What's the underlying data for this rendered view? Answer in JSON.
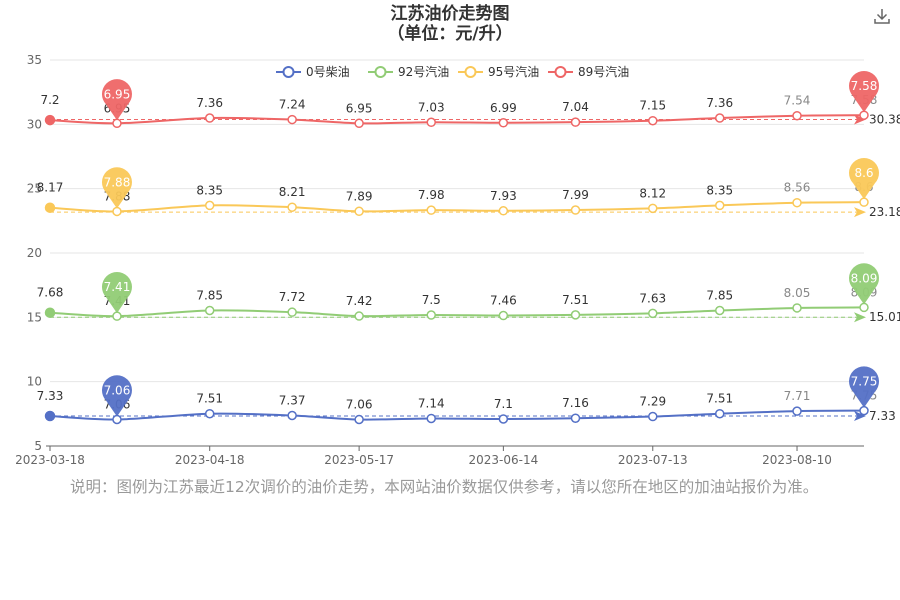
{
  "title_line1": "江苏油价走势图",
  "title_line2": "（单位：元/升）",
  "download_icon": "download-icon",
  "note": "说明：图例为江苏最近12次调价的油价走势，本网站油价数据仅供参考，请以您所在地区的加油站报价为准。",
  "chart_data": {
    "type": "line",
    "x": [
      "2023-03-18",
      "2023-03-31",
      "2023-04-18",
      "2023-05-04",
      "2023-05-17",
      "2023-05-31",
      "2023-06-14",
      "2023-06-28",
      "2023-07-13",
      "2023-07-26",
      "2023-08-10",
      "2023-08-23"
    ],
    "xticks": [
      "2023-03-18",
      "2023-04-18",
      "2023-05-17",
      "2023-06-14",
      "2023-07-13",
      "2023-08-10"
    ],
    "ylim": [
      5,
      35
    ],
    "yticks": [
      5,
      10,
      15,
      20,
      25,
      30,
      35
    ],
    "grid": true,
    "legend_position": "top",
    "series": [
      {
        "name": "0号柴油",
        "color": "#5470c6",
        "offset": 0,
        "values": [
          7.33,
          7.06,
          7.51,
          7.37,
          7.06,
          7.14,
          7.1,
          7.16,
          7.29,
          7.51,
          7.71,
          7.75
        ],
        "average": 7.33,
        "average_label": "7.33",
        "pins": [
          {
            "index": 1,
            "label": "7.06"
          },
          {
            "index": 11,
            "label": "7.75"
          }
        ]
      },
      {
        "name": "92号汽油",
        "color": "#91cc75",
        "offset": 7.68,
        "values": [
          7.68,
          7.41,
          7.85,
          7.72,
          7.42,
          7.5,
          7.46,
          7.51,
          7.63,
          7.85,
          8.05,
          8.09
        ],
        "average": 15.01,
        "average_label": "15.01",
        "pins": [
          {
            "index": 1,
            "label": "7.41"
          },
          {
            "index": 11,
            "label": "8.09"
          }
        ]
      },
      {
        "name": "95号汽油",
        "color": "#fac858",
        "offset": 15.35,
        "values": [
          8.17,
          7.88,
          8.35,
          8.21,
          7.89,
          7.98,
          7.93,
          7.99,
          8.12,
          8.35,
          8.56,
          8.6
        ],
        "average": 23.18,
        "average_label": "23.18",
        "pins": [
          {
            "index": 1,
            "label": "7.88"
          },
          {
            "index": 11,
            "label": "8.6"
          }
        ]
      },
      {
        "name": "89号汽油",
        "color": "#ee6666",
        "offset": 23.13,
        "values": [
          7.2,
          6.95,
          7.36,
          7.24,
          6.95,
          7.03,
          6.99,
          7.04,
          7.15,
          7.36,
          7.54,
          7.58
        ],
        "average": 30.38,
        "average_label": "30.38",
        "pins": [
          {
            "index": 1,
            "label": "6.95"
          },
          {
            "index": 11,
            "label": "7.58"
          }
        ]
      }
    ]
  }
}
